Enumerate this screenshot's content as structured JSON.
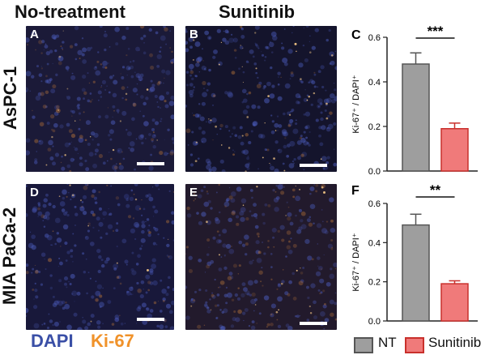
{
  "columns": [
    "No-treatment",
    "Sunitinib"
  ],
  "rows": [
    "AsPC-1",
    "MIA PaCa-2"
  ],
  "panels": [
    {
      "letter": "A",
      "tone": "nt1"
    },
    {
      "letter": "B",
      "tone": "su1"
    },
    {
      "letter": "D",
      "tone": "nt2"
    },
    {
      "letter": "E",
      "tone": "su2"
    }
  ],
  "stain_legend": {
    "dapi": "DAPI",
    "ki67": "Ki-67",
    "dapi_color": "#3a4fa6",
    "ki67_color": "#f0922a"
  },
  "colors": {
    "nt": "#9e9e9e",
    "sunitinib": "#f07a7a",
    "sunitinib_edge": "#c9302c",
    "nt_edge": "#555555"
  },
  "chart_data": [
    {
      "type": "bar",
      "panel_label": "C",
      "categories": [
        "NT",
        "Sunitinib"
      ],
      "values": [
        0.48,
        0.19
      ],
      "errors": [
        0.05,
        0.025
      ],
      "ylabel": "Ki-67⁺ / DAPI⁺",
      "ylim": [
        0,
        0.6
      ],
      "yticks": [
        "0.0",
        "0.2",
        "0.4",
        "0.6"
      ],
      "significance": "***",
      "grid": false
    },
    {
      "type": "bar",
      "panel_label": "F",
      "categories": [
        "NT",
        "Sunitinib"
      ],
      "values": [
        0.49,
        0.19
      ],
      "errors": [
        0.055,
        0.015
      ],
      "ylabel": "Ki-67⁺ / DAPI⁺",
      "ylim": [
        0,
        0.6
      ],
      "yticks": [
        "0.0",
        "0.2",
        "0.4",
        "0.6"
      ],
      "significance": "**",
      "grid": false
    }
  ],
  "legend": {
    "items": [
      "NT",
      "Sunitinib"
    ],
    "placement": "bottom-right"
  }
}
